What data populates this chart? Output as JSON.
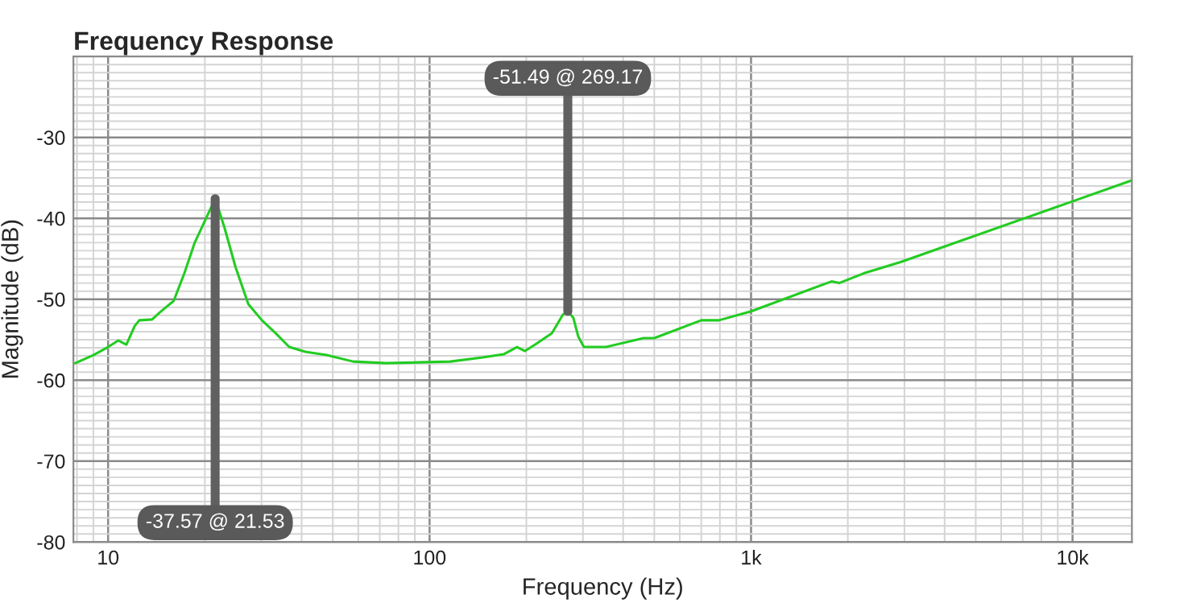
{
  "chart_data": {
    "type": "line",
    "title": "Frequency Response",
    "xlabel": "Frequency (Hz)",
    "ylabel": "Magnitude (dB)",
    "log": "x",
    "grid": true,
    "marker": "none",
    "line_style": "solid",
    "xlim": [
      7.8,
      15300
    ],
    "ylim": [
      -80,
      -20
    ],
    "xticks": [
      {
        "value": 10,
        "label": "10"
      },
      {
        "value": 100,
        "label": "100"
      },
      {
        "value": 1000,
        "label": "1k"
      },
      {
        "value": 10000,
        "label": "10k"
      }
    ],
    "yticks": [
      -80,
      -70,
      -60,
      -50,
      -40,
      -30
    ],
    "series": [
      {
        "color": "#22cc22",
        "x": [
          7.9,
          9.0,
          10,
          10.75,
          11.4,
          12.1,
          12.5,
          13.7,
          14.5,
          16.0,
          17.3,
          18.6,
          19.8,
          21.53,
          23.0,
          24.9,
          27.3,
          30.1,
          33.2,
          36.6,
          41.1,
          47.8,
          57.9,
          73.3,
          92.2,
          116,
          146,
          170,
          187,
          198,
          213,
          240,
          260,
          269.17,
          280,
          290,
          302,
          354,
          463,
          500,
          700,
          794,
          1000,
          1780,
          1880,
          2240,
          2920,
          10000,
          15300
        ],
        "values": [
          -57.9,
          -56.9,
          -55.9,
          -55.1,
          -55.6,
          -53.3,
          -52.6,
          -52.5,
          -51.6,
          -50.2,
          -46.7,
          -43.0,
          -40.7,
          -37.57,
          -41.1,
          -46.0,
          -50.6,
          -52.6,
          -54.2,
          -55.9,
          -56.5,
          -56.9,
          -57.7,
          -57.9,
          -57.8,
          -57.7,
          -57.2,
          -56.8,
          -55.9,
          -56.4,
          -55.6,
          -54.2,
          -51.9,
          -51.49,
          -52.3,
          -54.6,
          -55.9,
          -55.9,
          -54.8,
          -54.8,
          -52.6,
          -52.6,
          -51.5,
          -47.8,
          -48.0,
          -46.8,
          -45.4,
          -37.9,
          -35.3
        ]
      }
    ],
    "annotations": [
      {
        "text": "-37.57 @ 21.53",
        "x": 21.53,
        "y": -37.57
      },
      {
        "text": "-51.49 @ 269.17",
        "x": 269.17,
        "y": -51.49
      }
    ]
  }
}
